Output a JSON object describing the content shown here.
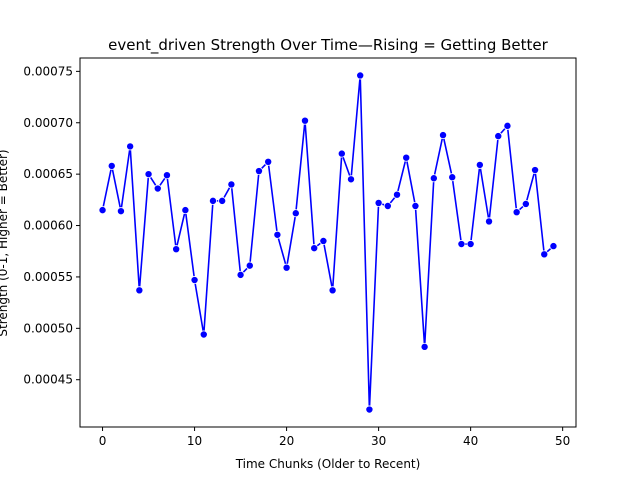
{
  "chart_data": {
    "type": "line",
    "title": "event_driven Strength Over Time—Rising = Getting Better",
    "xlabel": "Time Chunks (Older to Recent)",
    "ylabel": "Strength (0-1, Higher = Better)",
    "xlim": [
      -2.45,
      51.45
    ],
    "ylim": [
      0.000404,
      0.000763
    ],
    "xticks": [
      0,
      10,
      20,
      30,
      40,
      50
    ],
    "yticks": [
      0.00045,
      0.0005,
      0.00055,
      0.0006,
      0.00065,
      0.0007,
      0.00075
    ],
    "ytick_labels": [
      "0.00045",
      "0.00050",
      "0.00055",
      "0.00060",
      "0.00065",
      "0.00070",
      "0.00075"
    ],
    "grid": false,
    "series": [
      {
        "color": "#0000ff",
        "marker": "circle",
        "x": [
          0,
          1,
          2,
          3,
          4,
          5,
          6,
          7,
          8,
          9,
          10,
          11,
          12,
          13,
          14,
          15,
          16,
          17,
          18,
          19,
          20,
          21,
          22,
          23,
          24,
          25,
          26,
          27,
          28,
          29,
          30,
          31,
          32,
          33,
          34,
          35,
          36,
          37,
          38,
          39,
          40,
          41,
          42,
          43,
          44,
          45,
          46,
          47,
          48,
          49
        ],
        "y": [
          0.000615,
          0.000658,
          0.000614,
          0.000677,
          0.000537,
          0.00065,
          0.000636,
          0.000649,
          0.000577,
          0.000615,
          0.000547,
          0.000494,
          0.000624,
          0.000624,
          0.00064,
          0.000552,
          0.000561,
          0.000653,
          0.000662,
          0.000591,
          0.000559,
          0.000612,
          0.000702,
          0.000578,
          0.000585,
          0.000537,
          0.00067,
          0.000645,
          0.000746,
          0.000421,
          0.000622,
          0.000619,
          0.00063,
          0.000666,
          0.000619,
          0.000482,
          0.000646,
          0.000688,
          0.000647,
          0.000582,
          0.000582,
          0.000659,
          0.000604,
          0.000687,
          0.000697,
          0.000613,
          0.000621,
          0.000654,
          0.000572,
          0.00058
        ]
      }
    ]
  }
}
